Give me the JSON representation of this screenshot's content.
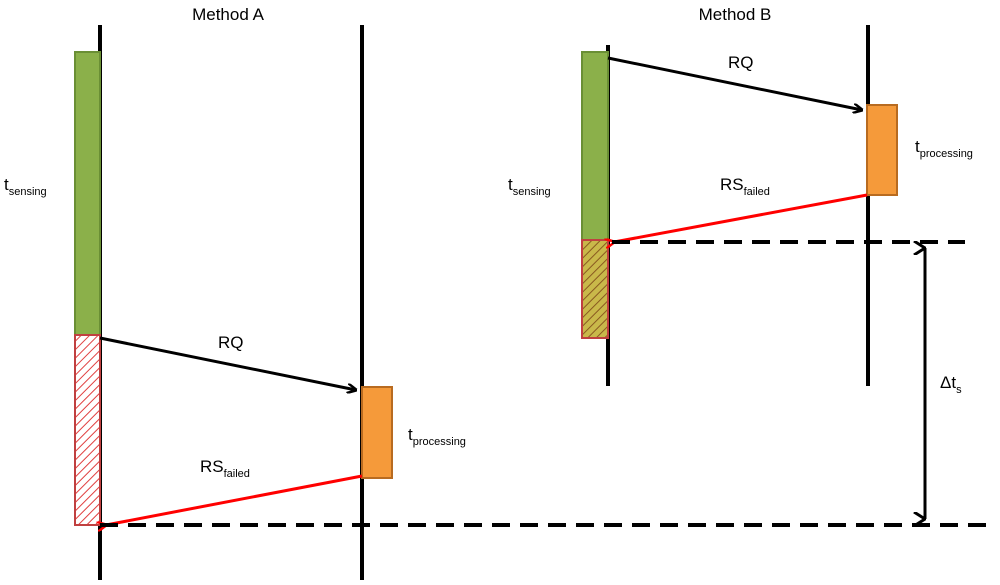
{
  "method_a": {
    "title": "Method A",
    "t_sensing": {
      "base": "t",
      "sub": "sensing"
    },
    "request": "RQ",
    "response": {
      "base": "RS",
      "sub": "failed"
    },
    "t_processing": {
      "base": "t",
      "sub": "processing"
    }
  },
  "method_b": {
    "title": "Method B",
    "t_sensing": {
      "base": "t",
      "sub": "sensing"
    },
    "request": "RQ",
    "response": {
      "base": "RS",
      "sub": "failed"
    },
    "t_processing": {
      "base": "t",
      "sub": "processing"
    }
  },
  "delta": {
    "base": "Δt",
    "sub": "s"
  }
}
